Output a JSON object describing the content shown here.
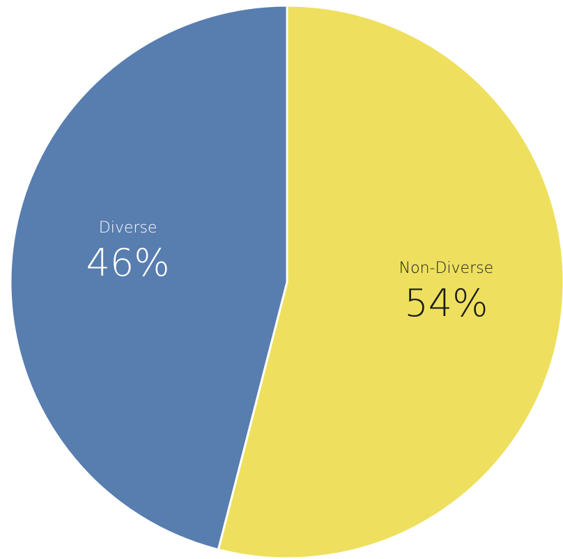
{
  "chart_data": {
    "type": "pie",
    "categories": [
      "Non-Diverse",
      "Diverse"
    ],
    "values": [
      54,
      46
    ],
    "value_labels": [
      "54%",
      "46%"
    ],
    "colors": [
      "#EEE05E",
      "#587DAF"
    ],
    "label_colors": [
      "#1a1a1a",
      "#ffffff"
    ],
    "start_angle_deg": 0,
    "direction": "clockwise",
    "legend": "none"
  }
}
